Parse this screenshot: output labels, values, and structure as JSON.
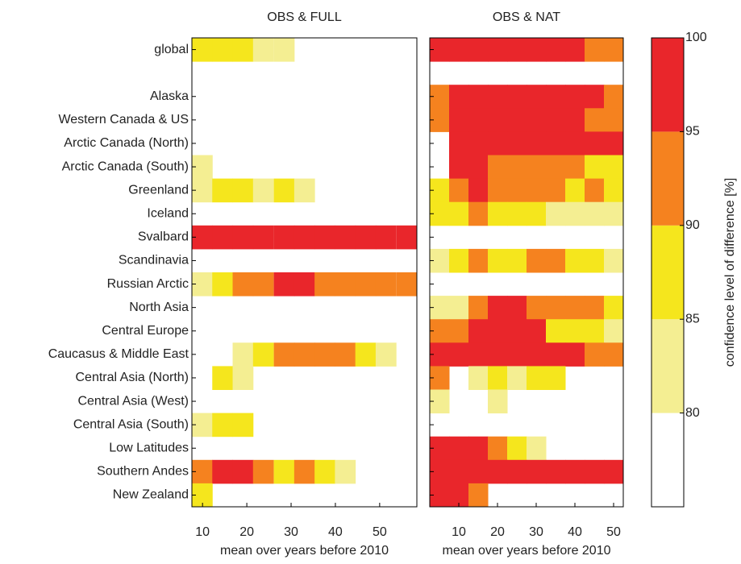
{
  "chart_data": {
    "type": "heatmap",
    "categories": [
      "global",
      null,
      "Alaska",
      "Western Canada & US",
      "Arctic Canada (North)",
      "Arctic Canada (South)",
      "Greenland",
      "Iceland",
      "Svalbard",
      "Scandinavia",
      "Russian Arctic",
      "North Asia",
      "Central Europe",
      "Caucasus & Middle East",
      "Central Asia (North)",
      "Central Asia (West)",
      "Central Asia (South)",
      "Low Latitudes",
      "Southern Andes",
      "New Zealand"
    ],
    "panels": [
      {
        "title": "OBS & FULL",
        "xlabel": "mean over years before 2010",
        "x": [
          9.9,
          14.5,
          19.1,
          23.7,
          28.4,
          33.0,
          37.6,
          42.2,
          46.8,
          51.4,
          56.1
        ],
        "xlim": [
          7.6,
          58.4
        ],
        "xticks": [
          10,
          20,
          30,
          40,
          50
        ],
        "values": [
          [
            87.5,
            87.5,
            87.5,
            82.5,
            82.5,
            null,
            null,
            null,
            null,
            null,
            null
          ],
          [
            null,
            null,
            null,
            null,
            null,
            null,
            null,
            null,
            null,
            null,
            null
          ],
          [
            null,
            null,
            null,
            null,
            null,
            null,
            null,
            null,
            null,
            null,
            null
          ],
          [
            null,
            null,
            null,
            null,
            null,
            null,
            null,
            null,
            null,
            null,
            null
          ],
          [
            null,
            null,
            null,
            null,
            null,
            null,
            null,
            null,
            null,
            null,
            null
          ],
          [
            82.5,
            null,
            null,
            null,
            null,
            null,
            null,
            null,
            null,
            null,
            null
          ],
          [
            82.5,
            87.5,
            87.5,
            82.5,
            87.5,
            82.5,
            null,
            null,
            null,
            null,
            null
          ],
          [
            null,
            null,
            null,
            null,
            null,
            null,
            null,
            null,
            null,
            null,
            null
          ],
          [
            97.5,
            97.5,
            97.5,
            97.5,
            97.5,
            97.5,
            97.5,
            97.5,
            97.5,
            97.5,
            97.5
          ],
          [
            null,
            null,
            null,
            null,
            null,
            null,
            null,
            null,
            null,
            null,
            null
          ],
          [
            82.5,
            87.5,
            92.5,
            92.5,
            97.5,
            97.5,
            92.5,
            92.5,
            92.5,
            92.5,
            92.5
          ],
          [
            null,
            null,
            null,
            null,
            null,
            null,
            null,
            null,
            null,
            null,
            null
          ],
          [
            null,
            null,
            null,
            null,
            null,
            null,
            null,
            null,
            null,
            null,
            null
          ],
          [
            null,
            null,
            82.5,
            87.5,
            92.5,
            92.5,
            92.5,
            92.5,
            87.5,
            82.5,
            null
          ],
          [
            null,
            87.5,
            82.5,
            null,
            null,
            null,
            null,
            null,
            null,
            null,
            null
          ],
          [
            null,
            null,
            null,
            null,
            null,
            null,
            null,
            null,
            null,
            null,
            null
          ],
          [
            82.5,
            87.5,
            87.5,
            null,
            null,
            null,
            null,
            null,
            null,
            null,
            null
          ],
          [
            null,
            null,
            null,
            null,
            null,
            null,
            null,
            null,
            null,
            null,
            null
          ],
          [
            92.5,
            97.5,
            97.5,
            92.5,
            87.5,
            92.5,
            87.5,
            82.5,
            null,
            null,
            null
          ],
          [
            87.5,
            null,
            null,
            null,
            null,
            null,
            null,
            null,
            null,
            null,
            null
          ]
        ]
      },
      {
        "title": "OBS & NAT",
        "xlabel": "mean over years before 2010",
        "x": [
          5,
          10,
          15,
          20,
          25,
          30,
          35,
          40,
          45,
          50
        ],
        "xlim": [
          2.5,
          52.5
        ],
        "xticks": [
          10,
          20,
          30,
          40,
          50
        ],
        "values": [
          [
            97.5,
            97.5,
            97.5,
            97.5,
            97.5,
            97.5,
            97.5,
            97.5,
            92.5,
            92.5
          ],
          [
            null,
            null,
            null,
            null,
            null,
            null,
            null,
            null,
            null,
            null
          ],
          [
            92.5,
            97.5,
            97.5,
            97.5,
            97.5,
            97.5,
            97.5,
            97.5,
            97.5,
            92.5
          ],
          [
            92.5,
            97.5,
            97.5,
            97.5,
            97.5,
            97.5,
            97.5,
            97.5,
            92.5,
            92.5
          ],
          [
            null,
            97.5,
            97.5,
            97.5,
            97.5,
            97.5,
            97.5,
            97.5,
            97.5,
            97.5
          ],
          [
            null,
            97.5,
            97.5,
            92.5,
            92.5,
            92.5,
            92.5,
            92.5,
            87.5,
            87.5
          ],
          [
            87.5,
            92.5,
            97.5,
            92.5,
            92.5,
            92.5,
            92.5,
            87.5,
            92.5,
            87.5
          ],
          [
            87.5,
            87.5,
            92.5,
            87.5,
            87.5,
            87.5,
            82.5,
            82.5,
            82.5,
            82.5
          ],
          [
            null,
            null,
            null,
            null,
            null,
            null,
            null,
            null,
            null,
            null
          ],
          [
            82.5,
            87.5,
            92.5,
            87.5,
            87.5,
            92.5,
            92.5,
            87.5,
            87.5,
            82.5
          ],
          [
            null,
            null,
            null,
            null,
            null,
            null,
            null,
            null,
            null,
            null
          ],
          [
            82.5,
            82.5,
            92.5,
            97.5,
            97.5,
            92.5,
            92.5,
            92.5,
            92.5,
            87.5
          ],
          [
            92.5,
            92.5,
            97.5,
            97.5,
            97.5,
            97.5,
            87.5,
            87.5,
            87.5,
            82.5
          ],
          [
            97.5,
            97.5,
            97.5,
            97.5,
            97.5,
            97.5,
            97.5,
            97.5,
            92.5,
            92.5
          ],
          [
            92.5,
            null,
            82.5,
            87.5,
            82.5,
            87.5,
            87.5,
            null,
            null,
            null
          ],
          [
            82.5,
            null,
            null,
            82.5,
            null,
            null,
            null,
            null,
            null,
            null
          ],
          [
            null,
            null,
            null,
            null,
            null,
            null,
            null,
            null,
            null,
            null
          ],
          [
            97.5,
            97.5,
            97.5,
            92.5,
            87.5,
            82.5,
            null,
            null,
            null,
            null
          ],
          [
            97.5,
            97.5,
            97.5,
            97.5,
            97.5,
            97.5,
            97.5,
            97.5,
            97.5,
            97.5
          ],
          [
            97.5,
            97.5,
            92.5,
            null,
            null,
            null,
            null,
            null,
            null,
            null
          ]
        ]
      }
    ],
    "colorbar": {
      "label": "confidence level of difference [%]",
      "lim": [
        75,
        100
      ],
      "ticks": [
        80,
        85,
        90,
        95,
        100
      ],
      "bins": [
        80,
        85,
        90,
        95,
        100
      ],
      "colors": [
        "#f4ee92",
        "#f5e61d",
        "#f5821f",
        "#e9262b"
      ]
    }
  }
}
